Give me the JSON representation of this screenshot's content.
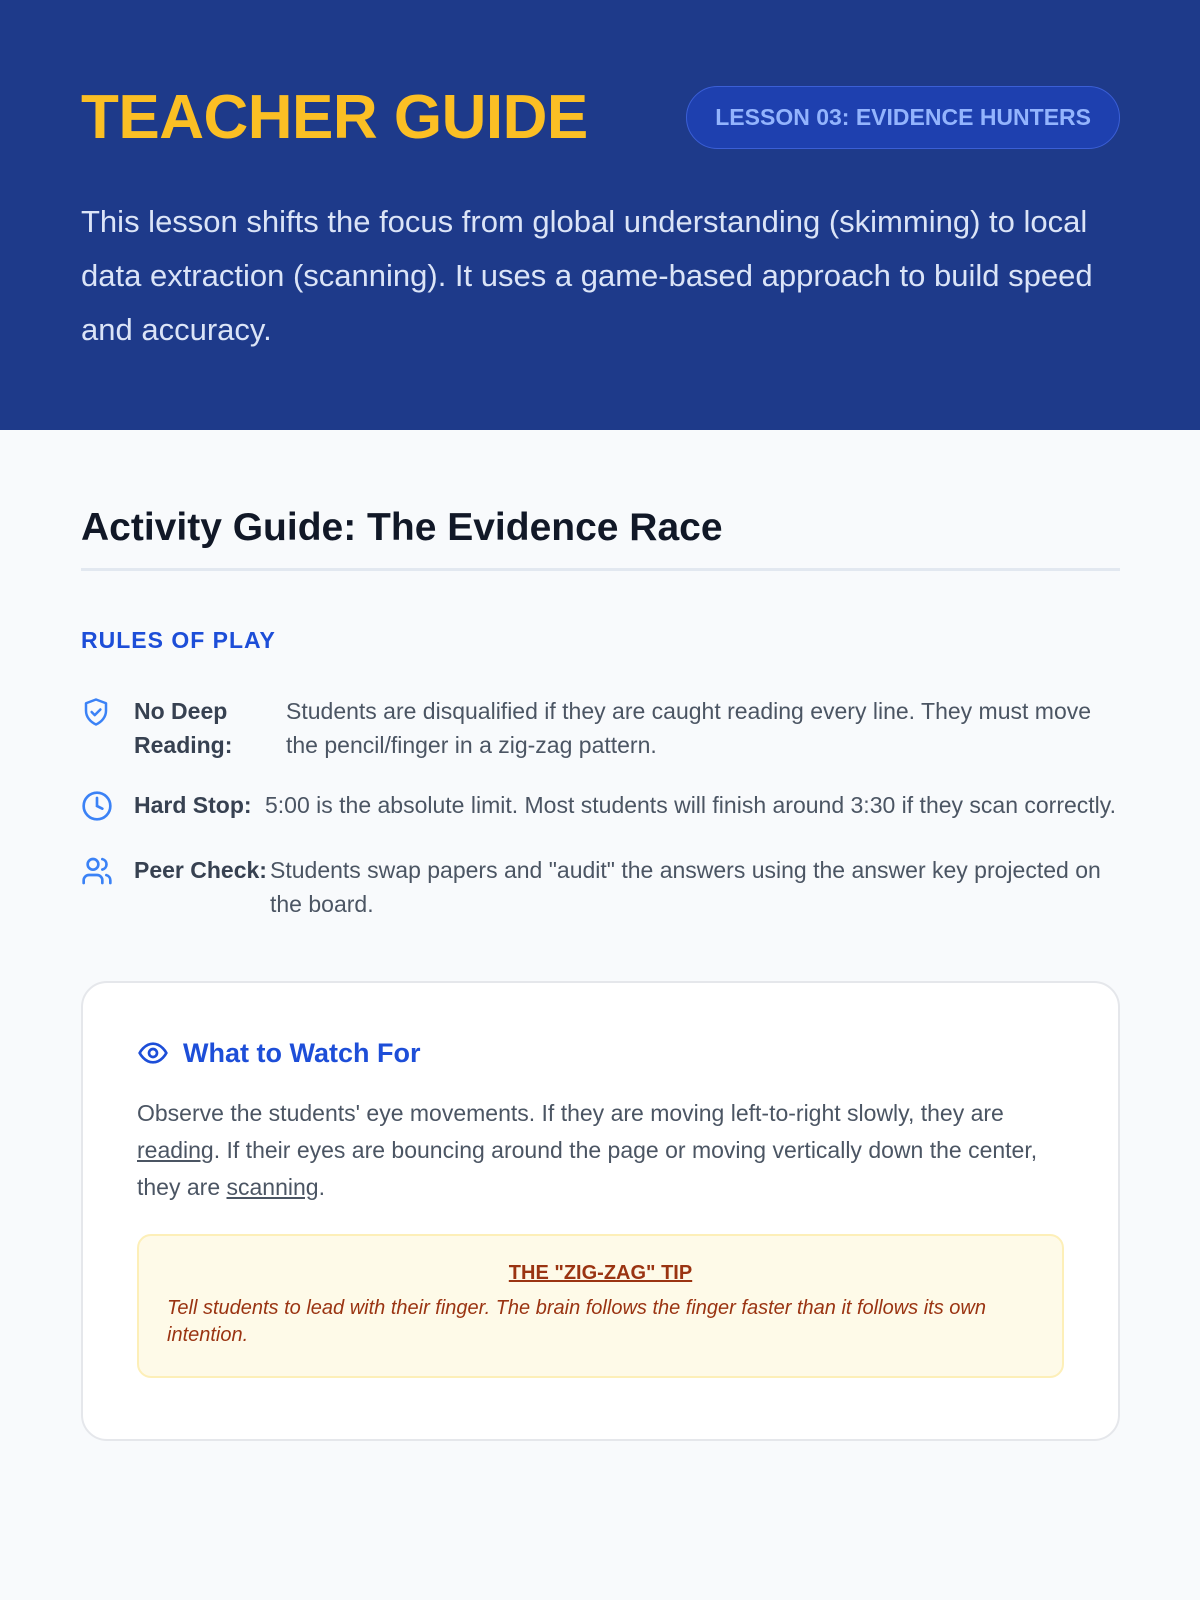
{
  "header": {
    "title": "TEACHER GUIDE",
    "badge": "LESSON 03: EVIDENCE HUNTERS",
    "intro": "This lesson shifts the focus from global understanding (skimming) to local data extraction (scanning). It uses a game-based approach to build speed and accuracy."
  },
  "activity": {
    "heading": "Activity Guide: The Evidence Race",
    "rules_label": "RULES OF PLAY",
    "rules": [
      {
        "icon": "shield-check-icon",
        "term": "No Deep Reading:",
        "desc": "Students are disqualified if they are caught reading every line. They must move the pencil/finger in a zig-zag pattern."
      },
      {
        "icon": "clock-icon",
        "term": "Hard Stop:",
        "desc": "5:00 is the absolute limit. Most students will finish around 3:30 if they scan correctly."
      },
      {
        "icon": "users-icon",
        "term": "Peer Check:",
        "desc": "Students swap papers and \"audit\" the answers using the answer key projected on the board."
      }
    ]
  },
  "watch": {
    "icon": "eye-icon",
    "title": "What to Watch For",
    "p1": "Observe the students' eye movements. If they are moving left-to-right slowly, they are ",
    "w1": "reading",
    "p2": ". If their eyes are bouncing around the page or moving vertically down the center, they are ",
    "w2": "scanning",
    "p3": ".",
    "tip": {
      "title": "THE \"ZIG-ZAG\" TIP",
      "body": "Tell students to lead with their finger. The brain follows the finger faster than it follows its own intention."
    }
  },
  "colors": {
    "header_bg": "#1e3a8a",
    "title": "#fbbf24",
    "accent": "#1d4ed8",
    "tip_text": "#9a3412",
    "tip_bg": "#fefae8"
  }
}
